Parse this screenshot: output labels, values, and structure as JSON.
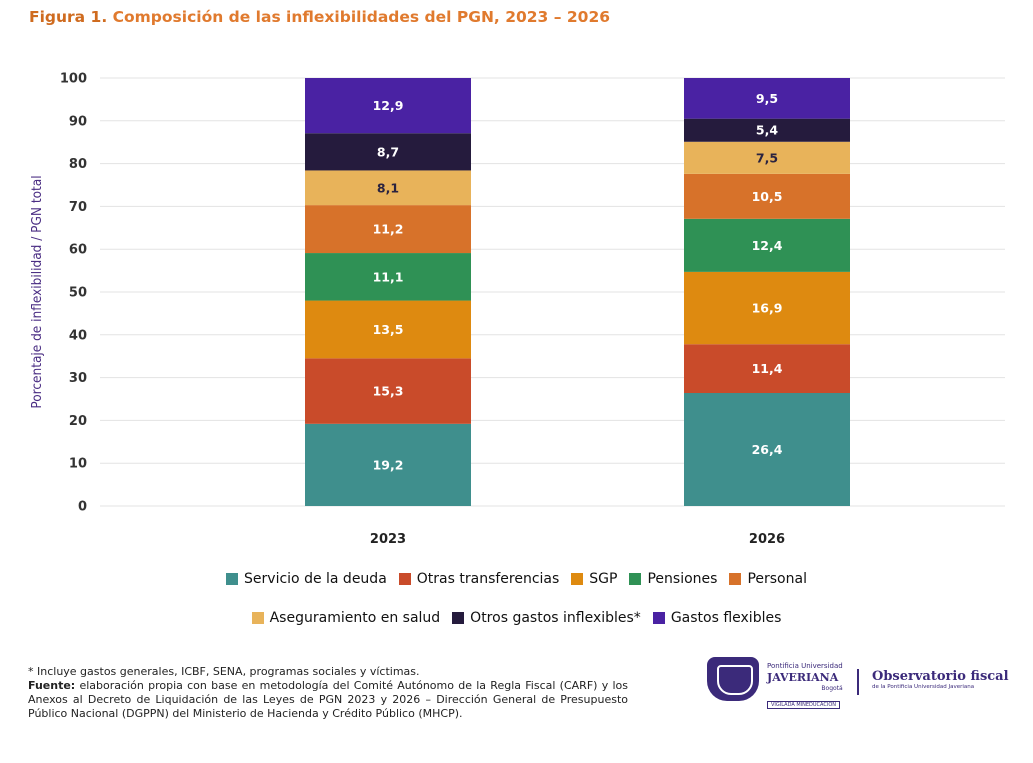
{
  "figure": {
    "title_prefix": "Figura 1.",
    "title_rest": "Composición de las inflexibilidades del PGN, 2023 – 2026"
  },
  "chart_data": {
    "type": "bar",
    "stacked": true,
    "categories": [
      "2023",
      "2026"
    ],
    "ylabel": "Porcentaje de inflexibilidad / PGN total",
    "ylim": [
      0,
      100
    ],
    "yticks": [
      0,
      10,
      20,
      30,
      40,
      50,
      60,
      70,
      80,
      90,
      100
    ],
    "grid": true,
    "legend_position": "bottom",
    "series": [
      {
        "name": "Servicio de la deuda",
        "color": "#3f8f8d",
        "label_color": "#ffffff",
        "values": [
          19.2,
          26.4
        ],
        "labels": [
          "19,2",
          "26,4"
        ]
      },
      {
        "name": "Otras transferencias",
        "color": "#c94b2a",
        "label_color": "#ffffff",
        "values": [
          15.3,
          11.4
        ],
        "labels": [
          "15,3",
          "11,4"
        ]
      },
      {
        "name": "SGP",
        "color": "#de8a10",
        "label_color": "#ffffff",
        "values": [
          13.5,
          16.9
        ],
        "labels": [
          "13,5",
          "16,9"
        ]
      },
      {
        "name": "Pensiones",
        "color": "#2f9155",
        "label_color": "#ffffff",
        "values": [
          11.1,
          12.4
        ],
        "labels": [
          "11,1",
          "12,4"
        ]
      },
      {
        "name": "Personal",
        "color": "#d7722a",
        "label_color": "#ffffff",
        "values": [
          11.2,
          10.5
        ],
        "labels": [
          "11,2",
          "10,5"
        ]
      },
      {
        "name": "Aseguramiento en salud",
        "color": "#e8b35a",
        "label_color": "#2a2340",
        "values": [
          8.1,
          7.5
        ],
        "labels": [
          "8,1",
          "7,5"
        ]
      },
      {
        "name": "Otros gastos inflexibles*",
        "color": "#251b3d",
        "label_color": "#ffffff",
        "values": [
          8.7,
          5.4
        ],
        "labels": [
          "8,7",
          "5,4"
        ]
      },
      {
        "name": "Gastos flexibles",
        "color": "#4a22a3",
        "label_color": "#ffffff",
        "values": [
          12.9,
          9.5
        ],
        "labels": [
          "12,9",
          "9,5"
        ]
      }
    ]
  },
  "footnote": {
    "note": "* Incluye gastos generales, ICBF, SENA, programas sociales y víctimas.",
    "source_label": "Fuente:",
    "source_text": "elaboración propia con base en metodología del Comité Autónomo de la Regla Fiscal (CARF) y los Anexos al Decreto de Liquidación de las Leyes de PGN 2023 y 2026 – Dirección General de Presupuesto Público Nacional (DGPPN) del Ministerio de Hacienda y Crédito Público (MHCP)."
  },
  "logos": {
    "javeriana_small": "Pontificia Universidad",
    "javeriana_name": "JAVERIANA",
    "javeriana_city": "Bogotá",
    "javeriana_tag": "VIGILADA MINEDUCACIÓN",
    "observatorio_name": "Observatorio fiscal",
    "observatorio_sub": "de la Pontificia Universidad Javeriana"
  }
}
